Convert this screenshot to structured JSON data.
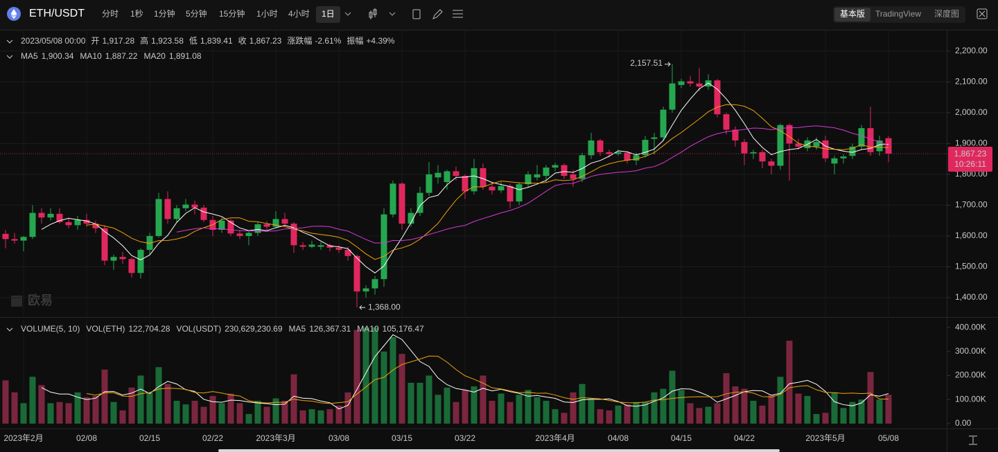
{
  "toolbar": {
    "symbol": "ETH/USDT",
    "intervals": [
      "分时",
      "1秒",
      "1分钟",
      "5分钟",
      "15分钟",
      "1小时",
      "4小时",
      "1日"
    ],
    "active_interval": 7,
    "views": [
      "基本版",
      "TradingView",
      "深度图"
    ],
    "active_view": 0
  },
  "watermark": "欧易",
  "chart_data": [
    {
      "type": "candlestick",
      "legend": {
        "time": "2023/05/08 00:00",
        "fields": [
          {
            "label": "开",
            "value": "1,917.28"
          },
          {
            "label": "高",
            "value": "1,923.58"
          },
          {
            "label": "低",
            "value": "1,839.41"
          },
          {
            "label": "收",
            "value": "1,867.23"
          },
          {
            "label": "涨跌幅",
            "value": "-2.61%"
          },
          {
            "label": "振幅",
            "value": "+4.39%"
          }
        ]
      },
      "ma": [
        {
          "name": "MA5",
          "value": "1,900.34",
          "color": "#ffffff",
          "period": 5
        },
        {
          "name": "MA10",
          "value": "1,887.22",
          "color": "#f0a30a",
          "period": 10
        },
        {
          "name": "MA20",
          "value": "1,891.08",
          "color": "#d63ad6",
          "period": 20
        }
      ],
      "up_color": "#25a750",
      "down_color": "#e0285e",
      "grid": true,
      "max_label": "2,157.51",
      "min_label": "1,368.00",
      "last_price": {
        "value": 1867.23,
        "label": "1,867.23",
        "countdown": "10:26:11"
      },
      "ylim": [
        1337,
        2267
      ],
      "yticks": [
        {
          "value": 1400,
          "label": "1,400.00"
        },
        {
          "value": 1500,
          "label": "1,500.00"
        },
        {
          "value": 1600,
          "label": "1,600.00"
        },
        {
          "value": 1700,
          "label": "1,700.00"
        },
        {
          "value": 1800,
          "label": "1,800.00"
        },
        {
          "value": 1900,
          "label": "1,900.00"
        },
        {
          "value": 2000,
          "label": "2,000.00"
        },
        {
          "value": 2100,
          "label": "2,100.00"
        },
        {
          "value": 2200,
          "label": "2,200.00"
        }
      ],
      "categories": [
        null,
        null,
        "2023年2月",
        null,
        null,
        null,
        null,
        null,
        null,
        "02/08",
        null,
        null,
        null,
        null,
        null,
        null,
        "02/15",
        null,
        null,
        null,
        null,
        null,
        null,
        "02/22",
        null,
        null,
        null,
        null,
        null,
        null,
        "2023年3月",
        null,
        null,
        null,
        null,
        null,
        null,
        "03/08",
        null,
        null,
        null,
        null,
        null,
        null,
        "03/15",
        null,
        null,
        null,
        null,
        null,
        null,
        "03/22",
        null,
        null,
        null,
        null,
        null,
        null,
        null,
        null,
        null,
        "2023年4月",
        null,
        null,
        null,
        null,
        null,
        null,
        "04/08",
        null,
        null,
        null,
        null,
        null,
        null,
        "04/15",
        null,
        null,
        null,
        null,
        null,
        null,
        "04/22",
        null,
        null,
        null,
        null,
        null,
        null,
        null,
        null,
        "2023年5月",
        null,
        null,
        null,
        null,
        null,
        null,
        "05/08"
      ],
      "open": [
        1607,
        1590,
        1585,
        1597,
        1675,
        1660,
        1672,
        1645,
        1635,
        1652,
        1640,
        1625,
        1520,
        1532,
        1525,
        1480,
        1555,
        1600,
        1720,
        1655,
        1690,
        1702,
        1692,
        1652,
        1620,
        1650,
        1608,
        1600,
        1610,
        1638,
        1630,
        1655,
        1640,
        1570,
        1565,
        1565,
        1570,
        1562,
        1555,
        1535,
        1420,
        1430,
        1460,
        1670,
        1770,
        1640,
        1675,
        1740,
        1790,
        1775,
        1810,
        1795,
        1745,
        1820,
        1760,
        1748,
        1762,
        1712,
        1768,
        1790,
        1795,
        1822,
        1830,
        1800,
        1785,
        1862,
        1910,
        1872,
        1866,
        1870,
        1845,
        1862,
        1915,
        1920,
        2010,
        2090,
        2102,
        2095,
        2085,
        2105,
        1995,
        1945,
        1905,
        1868,
        1872,
        1842,
        1828,
        1960,
        1900,
        1885,
        1890,
        1910,
        1835,
        1852,
        1860,
        1890,
        1950,
        1875,
        1917.28
      ],
      "high": [
        1620,
        1610,
        1600,
        1700,
        1690,
        1690,
        1690,
        1660,
        1665,
        1672,
        1650,
        1635,
        1540,
        1548,
        1530,
        1560,
        1610,
        1740,
        1745,
        1700,
        1720,
        1715,
        1700,
        1665,
        1660,
        1655,
        1620,
        1615,
        1645,
        1648,
        1680,
        1675,
        1645,
        1580,
        1585,
        1580,
        1575,
        1570,
        1565,
        1540,
        1440,
        1470,
        1690,
        1780,
        1775,
        1690,
        1760,
        1840,
        1830,
        1815,
        1825,
        1800,
        1850,
        1835,
        1775,
        1775,
        1770,
        1775,
        1810,
        1830,
        1830,
        1838,
        1835,
        1815,
        1870,
        1935,
        1915,
        1880,
        1880,
        1875,
        1870,
        1925,
        1935,
        2020,
        2157.51,
        2110,
        2120,
        2145,
        2125,
        2110,
        2000,
        1955,
        1915,
        1880,
        1880,
        1850,
        1965,
        1965,
        1915,
        1920,
        1920,
        1925,
        1860,
        1865,
        1900,
        1960,
        2020,
        1925,
        1923.58
      ],
      "low": [
        1560,
        1575,
        1550,
        1590,
        1640,
        1650,
        1640,
        1625,
        1620,
        1630,
        1610,
        1505,
        1490,
        1510,
        1465,
        1462,
        1540,
        1595,
        1640,
        1645,
        1680,
        1670,
        1645,
        1600,
        1610,
        1600,
        1590,
        1570,
        1600,
        1620,
        1625,
        1630,
        1545,
        1555,
        1560,
        1555,
        1550,
        1545,
        1520,
        1368,
        1400,
        1410,
        1435,
        1660,
        1620,
        1630,
        1665,
        1730,
        1770,
        1750,
        1780,
        1720,
        1735,
        1750,
        1735,
        1740,
        1690,
        1700,
        1760,
        1780,
        1775,
        1810,
        1785,
        1760,
        1775,
        1850,
        1860,
        1855,
        1860,
        1835,
        1830,
        1855,
        1865,
        1910,
        2000,
        2080,
        2085,
        2070,
        2075,
        1985,
        1930,
        1890,
        1830,
        1850,
        1820,
        1800,
        1815,
        1780,
        1880,
        1875,
        1880,
        1840,
        1800,
        1835,
        1850,
        1880,
        1860,
        1860,
        1839.41
      ],
      "close": [
        1590,
        1585,
        1597,
        1675,
        1660,
        1672,
        1645,
        1635,
        1652,
        1640,
        1625,
        1520,
        1532,
        1525,
        1480,
        1555,
        1600,
        1720,
        1655,
        1690,
        1702,
        1692,
        1652,
        1620,
        1650,
        1608,
        1600,
        1610,
        1638,
        1630,
        1655,
        1640,
        1570,
        1565,
        1572,
        1570,
        1562,
        1555,
        1535,
        1420,
        1430,
        1460,
        1670,
        1770,
        1640,
        1675,
        1740,
        1800,
        1805,
        1810,
        1795,
        1745,
        1820,
        1760,
        1748,
        1762,
        1712,
        1768,
        1800,
        1800,
        1822,
        1830,
        1795,
        1785,
        1862,
        1910,
        1872,
        1866,
        1872,
        1845,
        1862,
        1912,
        1920,
        2010,
        2095,
        2102,
        2095,
        2085,
        2105,
        1995,
        1945,
        1910,
        1868,
        1872,
        1842,
        1828,
        1960,
        1900,
        1890,
        1910,
        1905,
        1852,
        1852,
        1858,
        1890,
        1950,
        1872,
        1910,
        1867.23
      ]
    },
    {
      "type": "bar",
      "legend": {
        "title": "VOLUME(5, 10)",
        "fields": [
          {
            "label": "VOL(ETH)",
            "value": "122,704.28"
          },
          {
            "label": "VOL(USDT)",
            "value": "230,629,230.69"
          }
        ]
      },
      "ma": [
        {
          "name": "MA5",
          "value": "126,367.31",
          "color": "#ffffff",
          "period": 5
        },
        {
          "name": "MA10",
          "value": "105,176.47",
          "color": "#f0a30a",
          "period": 10
        }
      ],
      "up_color": "#1c7a3e",
      "down_color": "#8e2a48",
      "ylim": [
        0,
        432
      ],
      "yticks": [
        {
          "value": 0,
          "label": "0.00"
        },
        {
          "value": 100,
          "label": "100.00K"
        },
        {
          "value": 200,
          "label": "200.00K"
        },
        {
          "value": 300,
          "label": "300.00K"
        },
        {
          "value": 400,
          "label": "400.00K"
        }
      ],
      "values": [
        180,
        130,
        85,
        195,
        160,
        85,
        90,
        85,
        130,
        110,
        115,
        225,
        90,
        55,
        150,
        200,
        130,
        235,
        165,
        95,
        80,
        95,
        70,
        115,
        85,
        125,
        85,
        40,
        95,
        70,
        105,
        95,
        205,
        55,
        60,
        55,
        60,
        75,
        130,
        390,
        400,
        400,
        300,
        360,
        290,
        170,
        170,
        200,
        120,
        150,
        90,
        140,
        155,
        200,
        95,
        125,
        90,
        120,
        140,
        110,
        95,
        60,
        45,
        130,
        165,
        105,
        60,
        55,
        75,
        80,
        90,
        90,
        130,
        145,
        220,
        140,
        85,
        65,
        70,
        85,
        210,
        155,
        145,
        95,
        75,
        120,
        195,
        345,
        125,
        115,
        40,
        45,
        130,
        65,
        90,
        100,
        215,
        100,
        120
      ]
    }
  ]
}
